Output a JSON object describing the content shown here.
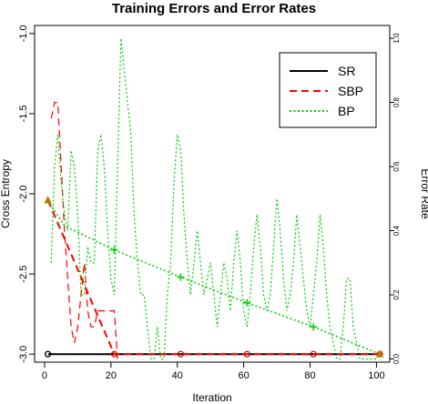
{
  "chart_data": {
    "type": "line",
    "title": "Training Errors and Error Rates",
    "xlabel": "Iteration",
    "ylabel_left": "Cross Entropy",
    "ylabel_right": "Error Rate",
    "xlim": [
      -3,
      104
    ],
    "ylim_left": [
      -3.05,
      -0.95
    ],
    "ylim_right": [
      -0.01,
      1.04
    ],
    "x_ticks": [
      0,
      20,
      40,
      60,
      80,
      100
    ],
    "y_left_ticks": [
      -3.0,
      -2.5,
      -2.0,
      -1.5,
      -1.0
    ],
    "y_left_tick_labels": [
      "-3.0",
      "-2.5",
      "-2.0",
      "-1.5",
      "-1.0"
    ],
    "y_right_ticks": [
      0.0,
      0.2,
      0.4,
      0.6,
      0.8,
      1.0
    ],
    "y_right_tick_labels": [
      "0.0",
      "0.2",
      "0.4",
      "0.6",
      "0.8",
      "1.0"
    ],
    "legend_position": "top-right",
    "legend": [
      {
        "label": "SR",
        "color": "#000000",
        "dash": "solid"
      },
      {
        "label": "SBP",
        "color": "#ff0000",
        "dash": "dashed"
      },
      {
        "label": "BP",
        "color": "#00cc00",
        "dash": "dotted"
      }
    ],
    "series": [
      {
        "name": "SR",
        "axis": "left",
        "color": "#000000",
        "dash": "solid",
        "width": 2,
        "x": [
          1,
          101
        ],
        "y": [
          -3.0,
          -3.0
        ]
      },
      {
        "name": "SBP",
        "axis": "left",
        "color": "#ff0000",
        "dash": "dashed",
        "width": 2,
        "x": [
          1,
          21,
          101
        ],
        "y": [
          -2.04,
          -3.0,
          -3.0
        ]
      },
      {
        "name": "BP",
        "axis": "left",
        "color": "#00cc00",
        "dash": "dotted",
        "width": 1.5,
        "x": [
          1,
          6,
          21,
          41,
          61,
          81,
          101
        ],
        "y": [
          -2.04,
          -2.2,
          -2.35,
          -2.52,
          -2.68,
          -2.83,
          -3.0
        ]
      },
      {
        "name": "SBP",
        "axis": "right",
        "color": "#ff0000",
        "dash": "dashed",
        "width": 1.2,
        "x": [
          2,
          3,
          4,
          5,
          6,
          7,
          8,
          9,
          10,
          11,
          12,
          13,
          14,
          15,
          16,
          17,
          18,
          19,
          20,
          21,
          22
        ],
        "y": [
          0.75,
          0.8,
          0.8,
          0.6,
          0.4,
          0.25,
          0.1,
          0.05,
          0.1,
          0.2,
          0.3,
          0.15,
          0.1,
          0.1,
          0.15,
          0.15,
          0.15,
          0.15,
          0.15,
          0.15,
          0.0
        ]
      },
      {
        "name": "BP",
        "axis": "right",
        "color": "#00cc00",
        "dash": "dotted",
        "width": 1.2,
        "x": [
          2,
          3,
          4,
          5,
          6,
          7,
          8,
          9,
          10,
          11,
          12,
          13,
          14,
          15,
          16,
          17,
          18,
          19,
          20,
          21,
          22,
          23,
          24,
          25,
          26,
          27,
          28,
          29,
          30,
          31,
          32,
          33,
          34,
          35,
          36,
          37,
          38,
          39,
          40,
          41,
          42,
          43,
          44,
          45,
          46,
          47,
          48,
          49,
          50,
          51,
          52,
          53,
          54,
          55,
          56,
          57,
          58,
          59,
          60,
          61,
          62,
          63,
          64,
          65,
          66,
          67,
          68,
          69,
          70,
          71,
          72,
          73,
          74,
          75,
          76,
          77,
          78,
          79,
          80,
          81,
          82,
          83,
          84,
          85,
          86,
          87,
          88,
          89,
          90,
          91,
          92,
          93,
          94,
          95,
          96,
          97,
          98,
          99,
          100
        ],
        "y": [
          0.3,
          0.6,
          0.7,
          0.55,
          0.45,
          0.4,
          0.65,
          0.6,
          0.45,
          0.2,
          0.2,
          0.35,
          0.3,
          0.3,
          0.65,
          0.7,
          0.6,
          0.4,
          0.25,
          0.2,
          0.6,
          1.0,
          0.9,
          0.8,
          0.7,
          0.45,
          0.3,
          0.2,
          0.2,
          0.1,
          0.0,
          0.0,
          0.1,
          0.0,
          0.0,
          0.2,
          0.3,
          0.55,
          0.7,
          0.65,
          0.45,
          0.3,
          0.2,
          0.3,
          0.4,
          0.3,
          0.2,
          0.25,
          0.3,
          0.2,
          0.1,
          0.2,
          0.3,
          0.25,
          0.15,
          0.3,
          0.4,
          0.3,
          0.15,
          0.1,
          0.2,
          0.35,
          0.45,
          0.35,
          0.2,
          0.15,
          0.2,
          0.35,
          0.5,
          0.4,
          0.25,
          0.15,
          0.2,
          0.3,
          0.45,
          0.35,
          0.25,
          0.15,
          0.1,
          0.2,
          0.3,
          0.45,
          0.35,
          0.2,
          0.1,
          0.05,
          0.0,
          0.0,
          0.1,
          0.25,
          0.25,
          0.1,
          0.05,
          0.0,
          0.0,
          0.0,
          0.0,
          0.0,
          0.0
        ]
      }
    ],
    "markers": [
      {
        "shape": "circle",
        "color": "#cc0000",
        "fill": "none",
        "points": [
          [
            1,
            -3.0
          ],
          [
            21,
            -3.0
          ],
          [
            41,
            -3.0
          ],
          [
            61,
            -3.0
          ],
          [
            81,
            -3.0
          ],
          [
            101,
            -3.0
          ]
        ]
      },
      {
        "shape": "circle",
        "color": "#000000",
        "fill": "none",
        "points": [
          [
            1,
            -3.0
          ]
        ]
      },
      {
        "shape": "plus",
        "color": "#00cc00",
        "points": [
          [
            21,
            -2.35
          ],
          [
            41,
            -2.52
          ],
          [
            61,
            -2.68
          ],
          [
            81,
            -2.83
          ]
        ]
      },
      {
        "shape": "triangle",
        "color": "#cc8800",
        "fill": "#888800",
        "points": [
          [
            1,
            -2.04
          ],
          [
            101,
            -3.0
          ]
        ]
      }
    ]
  }
}
